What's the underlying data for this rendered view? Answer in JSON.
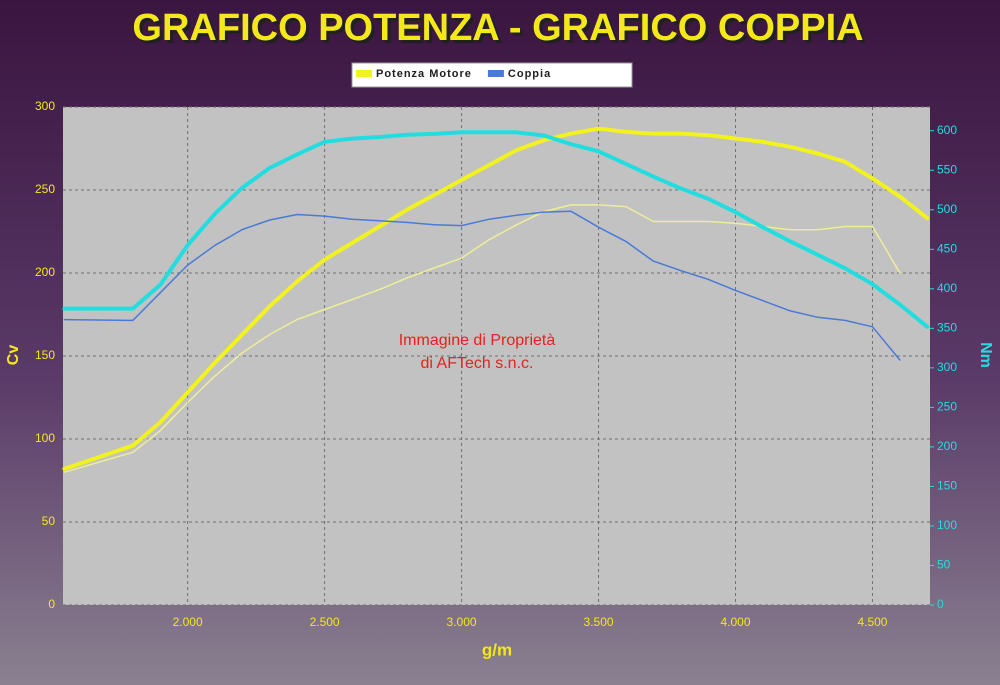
{
  "chart_data": {
    "type": "line",
    "title": "GRAFICO POTENZA - GRAFICO COPPIA",
    "x_label": "g/m",
    "y_label": "Cv",
    "y2_label": "Nm",
    "annotation": [
      "Immagine di Proprietà",
      "di AFTech s.n.c."
    ],
    "x": [
      1550,
      1800,
      1900,
      2000,
      2100,
      2200,
      2300,
      2400,
      2500,
      2600,
      2700,
      2800,
      2900,
      3000,
      3100,
      3200,
      3300,
      3400,
      3500,
      3600,
      3700,
      3800,
      3900,
      4000,
      4100,
      4200,
      4300,
      4400,
      4500,
      4600,
      4700
    ],
    "series": [
      {
        "name": "Potenza Motore",
        "color": "#f2f21e",
        "line_width": 4,
        "values": [
          82,
          96,
          110,
          128,
          146,
          163,
          180,
          195,
          208,
          218,
          228,
          238,
          247,
          256,
          265,
          274,
          280,
          284,
          287,
          285,
          284,
          284,
          283,
          281,
          279,
          276,
          272,
          267,
          257,
          246,
          233
        ]
      },
      {
        "color": "#eeee99",
        "line_width": 1.5,
        "values": [
          80,
          92,
          105,
          122,
          138,
          152,
          163,
          172,
          178,
          184,
          190,
          197,
          203,
          209,
          220,
          229,
          237,
          241,
          241,
          240,
          231,
          231,
          231,
          230,
          228,
          226,
          226,
          228,
          228,
          200,
          null
        ]
      },
      {
        "name": "Coppia",
        "color": "#4a7ad8",
        "line_width": 1.5,
        "axis": "y2",
        "values": [
          361,
          360,
          395,
          430,
          455,
          475,
          487,
          494,
          492,
          488,
          486,
          484,
          481,
          480,
          488,
          493,
          497,
          498,
          478,
          460,
          435,
          423,
          412,
          398,
          385,
          372,
          364,
          360,
          352,
          310,
          null
        ]
      },
      {
        "color": "#22dde0",
        "line_width": 4,
        "axis": "y2",
        "values": [
          375,
          375,
          405,
          455,
          495,
          528,
          553,
          570,
          586,
          590,
          592,
          595,
          596,
          598,
          598,
          598,
          594,
          583,
          574,
          558,
          542,
          527,
          514,
          497,
          478,
          460,
          443,
          426,
          406,
          380,
          352
        ]
      }
    ],
    "xlim": [
      1545,
      4710
    ],
    "xticks": [
      {
        "value": 2000,
        "label": "2.000"
      },
      {
        "value": 2500,
        "label": "2.500"
      },
      {
        "value": 3000,
        "label": "3.000"
      },
      {
        "value": 3500,
        "label": "3.500"
      },
      {
        "value": 4000,
        "label": "4.000"
      },
      {
        "value": 4500,
        "label": "4.500"
      }
    ],
    "ylim": [
      0,
      300
    ],
    "yticks": [
      0,
      50,
      100,
      150,
      200,
      250,
      300
    ],
    "y2lim": [
      0,
      630
    ],
    "y2ticks": [
      0,
      50,
      100,
      150,
      200,
      250,
      300,
      350,
      400,
      450,
      500,
      550,
      600
    ],
    "grid": true,
    "legend": "top"
  }
}
